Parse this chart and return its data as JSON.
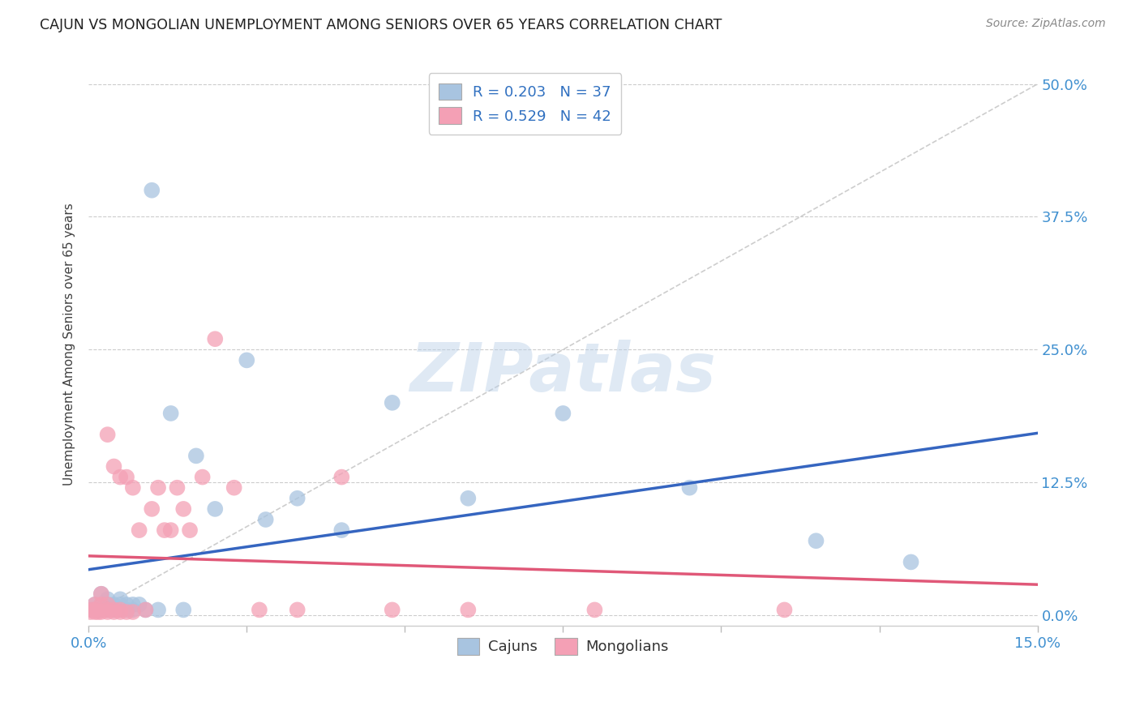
{
  "title": "CAJUN VS MONGOLIAN UNEMPLOYMENT AMONG SENIORS OVER 65 YEARS CORRELATION CHART",
  "source": "Source: ZipAtlas.com",
  "ylabel": "Unemployment Among Seniors over 65 years",
  "xlim": [
    0.0,
    0.15
  ],
  "ylim": [
    -0.01,
    0.52
  ],
  "cajun_R": 0.203,
  "cajun_N": 37,
  "mongolian_R": 0.529,
  "mongolian_N": 42,
  "cajun_color": "#a8c4e0",
  "mongolian_color": "#f4a0b5",
  "cajun_line_color": "#3565c0",
  "mongolian_line_color": "#e05878",
  "ref_line_color": "#c8c8c8",
  "background_color": "#ffffff",
  "grid_color": "#cccccc",
  "title_color": "#202020",
  "axis_label_color": "#404040",
  "tick_label_color": "#4090d0",
  "legend_text_color": "#3070c0",
  "cajun_x": [
    0.0005,
    0.001,
    0.001,
    0.0015,
    0.002,
    0.002,
    0.002,
    0.003,
    0.003,
    0.003,
    0.004,
    0.004,
    0.005,
    0.005,
    0.005,
    0.006,
    0.006,
    0.007,
    0.007,
    0.008,
    0.009,
    0.01,
    0.011,
    0.013,
    0.015,
    0.017,
    0.02,
    0.025,
    0.028,
    0.033,
    0.04,
    0.048,
    0.06,
    0.075,
    0.095,
    0.115,
    0.13
  ],
  "cajun_y": [
    0.005,
    0.005,
    0.01,
    0.005,
    0.005,
    0.01,
    0.02,
    0.005,
    0.01,
    0.015,
    0.005,
    0.01,
    0.005,
    0.01,
    0.015,
    0.005,
    0.01,
    0.005,
    0.01,
    0.01,
    0.005,
    0.4,
    0.005,
    0.19,
    0.005,
    0.15,
    0.1,
    0.24,
    0.09,
    0.11,
    0.08,
    0.2,
    0.11,
    0.19,
    0.12,
    0.07,
    0.05
  ],
  "mongolian_x": [
    0.0003,
    0.0005,
    0.001,
    0.001,
    0.001,
    0.0015,
    0.002,
    0.002,
    0.002,
    0.003,
    0.003,
    0.003,
    0.003,
    0.004,
    0.004,
    0.004,
    0.005,
    0.005,
    0.005,
    0.006,
    0.006,
    0.007,
    0.007,
    0.008,
    0.009,
    0.01,
    0.011,
    0.012,
    0.013,
    0.014,
    0.015,
    0.016,
    0.018,
    0.02,
    0.023,
    0.027,
    0.033,
    0.04,
    0.048,
    0.06,
    0.08,
    0.11
  ],
  "mongolian_y": [
    0.003,
    0.005,
    0.003,
    0.005,
    0.01,
    0.003,
    0.003,
    0.01,
    0.02,
    0.003,
    0.005,
    0.01,
    0.17,
    0.003,
    0.005,
    0.14,
    0.003,
    0.005,
    0.13,
    0.003,
    0.13,
    0.003,
    0.12,
    0.08,
    0.005,
    0.1,
    0.12,
    0.08,
    0.08,
    0.12,
    0.1,
    0.08,
    0.13,
    0.26,
    0.12,
    0.005,
    0.005,
    0.13,
    0.005,
    0.005,
    0.005,
    0.005
  ]
}
